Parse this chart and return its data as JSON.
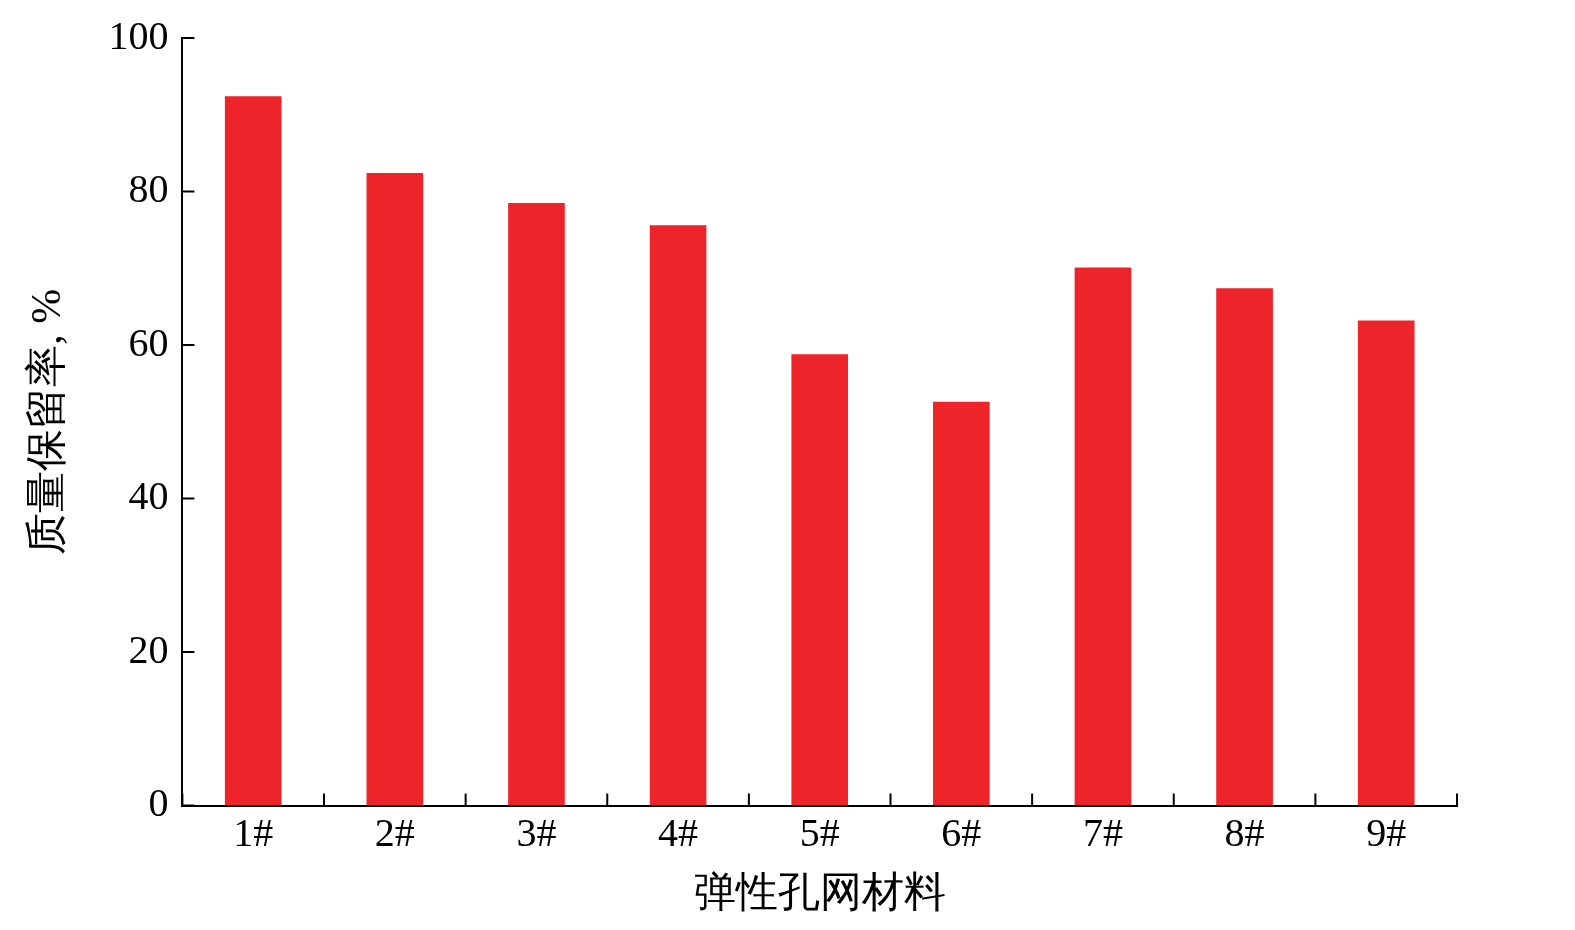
{
  "chart_data": {
    "type": "bar",
    "xlabel": "弹性孔网材料",
    "ylabel": "质量保留率, %",
    "categories": [
      "1#",
      "2#",
      "3#",
      "4#",
      "5#",
      "6#",
      "7#",
      "8#",
      "9#"
    ],
    "values": [
      92.4,
      82.4,
      78.5,
      75.6,
      58.8,
      52.6,
      70.1,
      67.4,
      63.2
    ],
    "color": "#ee242b",
    "ylim": [
      0,
      100
    ],
    "yticks": [
      0,
      20,
      40,
      60,
      80,
      100
    ],
    "grid": false,
    "legend": false
  }
}
